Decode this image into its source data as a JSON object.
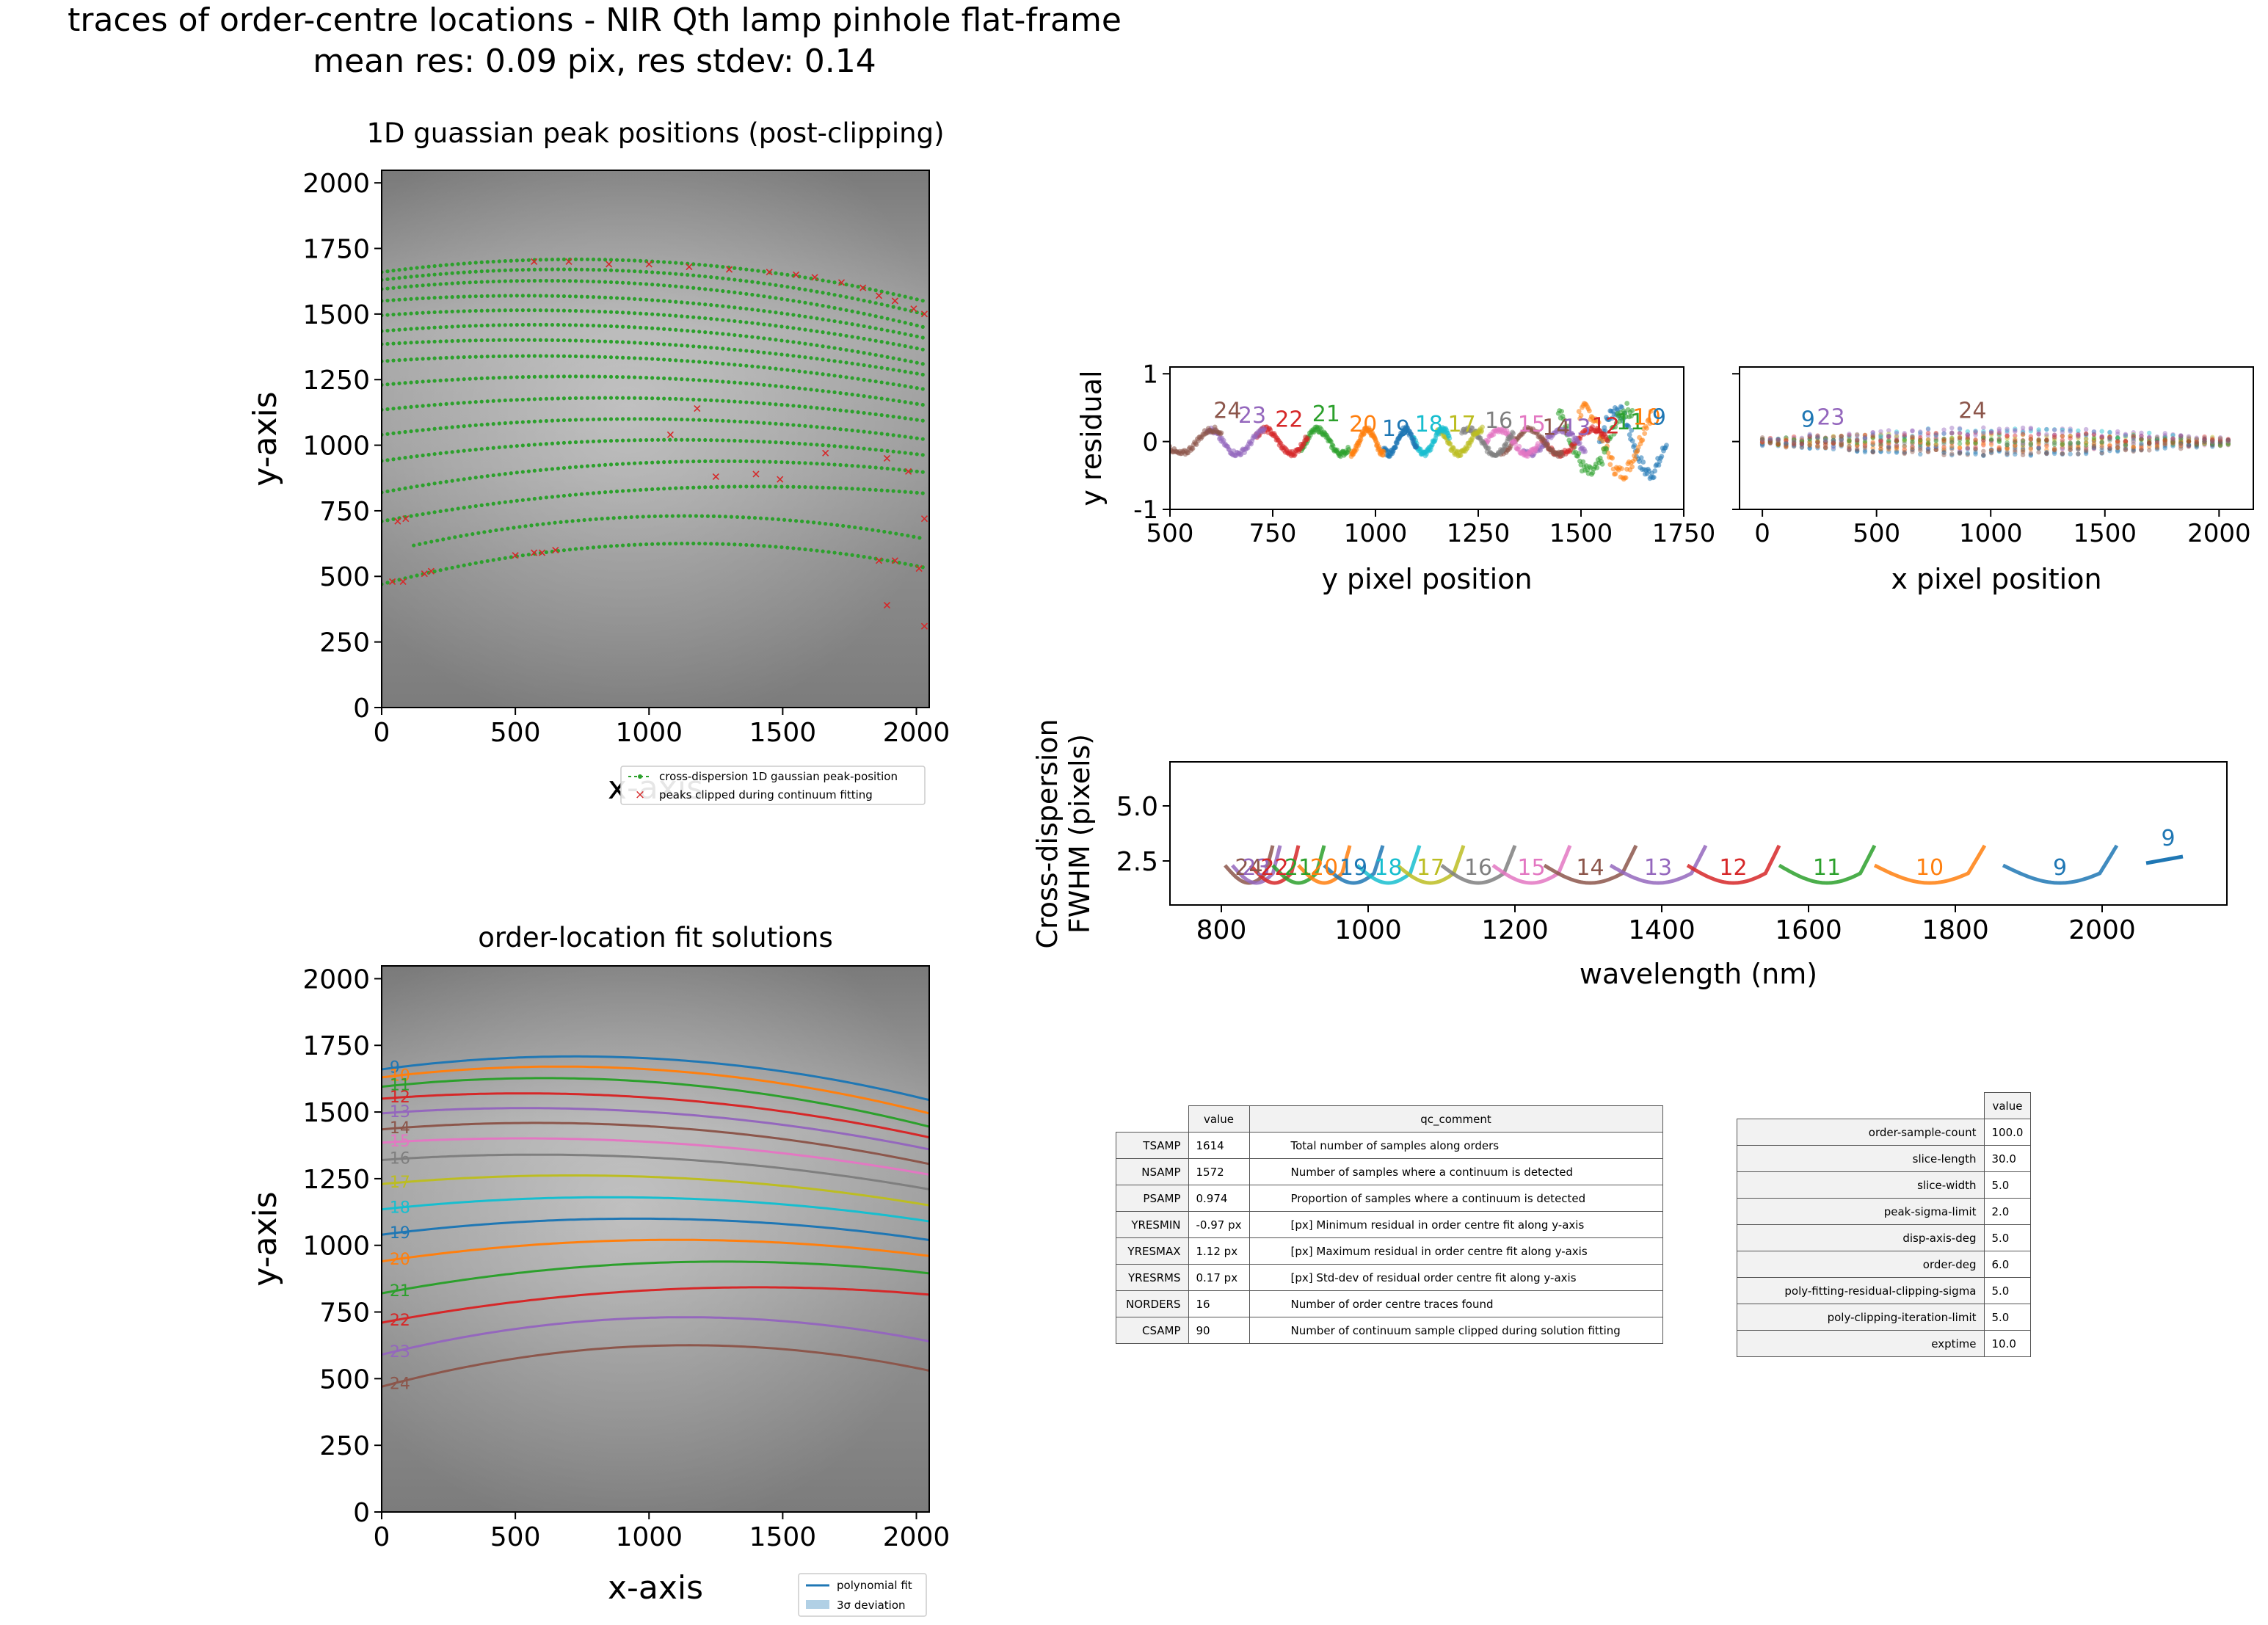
{
  "title": "traces of order-centre locations - NIR Qth lamp pinhole flat-frame",
  "subtitle": "mean res: 0.09 pix, res stdev: 0.14",
  "chart_data": [
    {
      "id": "peaks",
      "type": "scatter",
      "title": "1D guassian peak positions (post-clipping)",
      "xlabel": "x-axis",
      "ylabel": "y-axis",
      "xlim": [
        0,
        2048
      ],
      "ylim": [
        0,
        2048
      ],
      "xticks": [
        0,
        500,
        1000,
        1500,
        2000
      ],
      "yticks": [
        0,
        250,
        500,
        750,
        1000,
        1250,
        1500,
        1750,
        2000
      ],
      "background": "grayscale flat-frame image",
      "series": [
        {
          "name": "cross-dispersion 1D gaussian peak-position",
          "color": "#2ca02c",
          "marker": "dot"
        },
        {
          "name": "peaks clipped during continuum fitting",
          "color": "#d62728",
          "marker": "x",
          "points": [
            [
              40,
              480
            ],
            [
              80,
              480
            ],
            [
              160,
              510
            ],
            [
              185,
              520
            ],
            [
              500,
              580
            ],
            [
              570,
              590
            ],
            [
              600,
              590
            ],
            [
              650,
              600
            ],
            [
              60,
              710
            ],
            [
              90,
              720
            ],
            [
              1080,
              1040
            ],
            [
              1180,
              1140
            ],
            [
              1250,
              880
            ],
            [
              1400,
              890
            ],
            [
              1490,
              870
            ],
            [
              1660,
              970
            ],
            [
              1890,
              950
            ],
            [
              1970,
              900
            ],
            [
              2030,
              720
            ],
            [
              1860,
              560
            ],
            [
              1920,
              560
            ],
            [
              2010,
              530
            ],
            [
              1890,
              390
            ],
            [
              2030,
              310
            ],
            [
              570,
              1700
            ],
            [
              700,
              1700
            ],
            [
              850,
              1690
            ],
            [
              1000,
              1690
            ],
            [
              1150,
              1680
            ],
            [
              1300,
              1670
            ],
            [
              1450,
              1660
            ],
            [
              1550,
              1650
            ],
            [
              1620,
              1640
            ],
            [
              1720,
              1620
            ],
            [
              1800,
              1600
            ],
            [
              1860,
              1570
            ],
            [
              1920,
              1550
            ],
            [
              1990,
              1520
            ],
            [
              2030,
              1500
            ]
          ]
        }
      ],
      "orders": [
        {
          "order": 9,
          "ends": [
            1660,
            1545
          ],
          "peak": 1708,
          "peak_x": 650,
          "x_start": 0
        },
        {
          "order": 10,
          "ends": [
            1630,
            1495
          ],
          "peak": 1670,
          "peak_x": 730,
          "x_start": 0
        },
        {
          "order": 11,
          "ends": [
            1595,
            1445
          ],
          "peak": 1625,
          "peak_x": 760,
          "x_start": 0
        },
        {
          "order": 12,
          "ends": [
            1550,
            1405
          ],
          "peak": 1565,
          "peak_x": 790,
          "x_start": 0
        },
        {
          "order": 13,
          "ends": [
            1495,
            1360
          ],
          "peak": 1510,
          "peak_x": 800,
          "x_start": 0
        },
        {
          "order": 14,
          "ends": [
            1435,
            1305
          ],
          "peak": 1455,
          "peak_x": 820,
          "x_start": 0
        },
        {
          "order": 15,
          "ends": [
            1385,
            1265
          ],
          "peak": 1395,
          "peak_x": 850,
          "x_start": 0
        },
        {
          "order": 16,
          "ends": [
            1320,
            1210
          ],
          "peak": 1335,
          "peak_x": 870,
          "x_start": 0
        },
        {
          "order": 17,
          "ends": [
            1230,
            1150
          ],
          "peak": 1260,
          "peak_x": 900,
          "x_start": 0
        },
        {
          "order": 18,
          "ends": [
            1135,
            1090
          ],
          "peak": 1180,
          "peak_x": 930,
          "x_start": 0
        },
        {
          "order": 19,
          "ends": [
            1040,
            1020
          ],
          "peak": 1100,
          "peak_x": 980,
          "x_start": 0
        },
        {
          "order": 20,
          "ends": [
            940,
            960
          ],
          "peak": 1020,
          "peak_x": 1000,
          "x_start": 0
        },
        {
          "order": 21,
          "ends": [
            820,
            895
          ],
          "peak": 935,
          "peak_x": 1040,
          "x_start": 0
        },
        {
          "order": 22,
          "ends": [
            710,
            815
          ],
          "peak": 835,
          "peak_x": 1070,
          "x_start": 0
        },
        {
          "order": 23,
          "ends": [
            590,
            640
          ],
          "peak": 730,
          "peak_x": 1080,
          "x_start": 0
        },
        {
          "order": 24,
          "ends": [
            470,
            530
          ],
          "peak": 625,
          "peak_x": 1100,
          "x_start": 0
        }
      ],
      "legend": "below-right"
    },
    {
      "id": "fits",
      "type": "line",
      "title": "order-location fit solutions",
      "xlabel": "x-axis",
      "ylabel": "y-axis",
      "xlim": [
        0,
        2048
      ],
      "ylim": [
        0,
        2048
      ],
      "xticks": [
        0,
        500,
        1000,
        1500,
        2000
      ],
      "yticks": [
        0,
        250,
        500,
        750,
        1000,
        1250,
        1500,
        1750,
        2000
      ],
      "order_labels": [
        "9",
        "10",
        "11",
        "12",
        "13",
        "14",
        "15",
        "16",
        "17",
        "18",
        "19",
        "20",
        "21",
        "22",
        "23",
        "24"
      ],
      "legend": [
        "polynomial fit",
        "3σ deviation"
      ],
      "legend_position": "below-right"
    },
    {
      "id": "yres",
      "type": "scatter",
      "xlabel": "y pixel position",
      "ylabel": "y residual",
      "xlim": [
        500,
        1750
      ],
      "ylim": [
        -1,
        1.1
      ],
      "xticks": [
        500,
        750,
        1000,
        1250,
        1500,
        1750
      ],
      "yticks": [
        -1,
        0,
        1
      ],
      "order_labels": [
        {
          "label": "24",
          "x": 640,
          "y": 0.35
        },
        {
          "label": "23",
          "x": 700,
          "y": 0.28
        },
        {
          "label": "22",
          "x": 790,
          "y": 0.22
        },
        {
          "label": "21",
          "x": 880,
          "y": 0.3
        },
        {
          "label": "20",
          "x": 970,
          "y": 0.15
        },
        {
          "label": "19",
          "x": 1050,
          "y": 0.08
        },
        {
          "label": "18",
          "x": 1130,
          "y": 0.15
        },
        {
          "label": "17",
          "x": 1210,
          "y": 0.15
        },
        {
          "label": "16",
          "x": 1300,
          "y": 0.2
        },
        {
          "label": "15",
          "x": 1380,
          "y": 0.15
        },
        {
          "label": "14",
          "x": 1440,
          "y": 0.1
        },
        {
          "label": "13",
          "x": 1490,
          "y": 0.1
        },
        {
          "label": "12",
          "x": 1560,
          "y": 0.12
        },
        {
          "label": "11",
          "x": 1620,
          "y": 0.18
        },
        {
          "label": "10",
          "x": 1660,
          "y": 0.25
        },
        {
          "label": "9",
          "x": 1690,
          "y": 0.25
        }
      ]
    },
    {
      "id": "xres",
      "type": "scatter",
      "xlabel": "x pixel position",
      "ylabel": "",
      "xlim": [
        -100,
        2150
      ],
      "ylim": [
        -1,
        1.1
      ],
      "xticks": [
        0,
        500,
        1000,
        1500,
        2000
      ],
      "order_labels": [
        {
          "label": "9",
          "x": 200,
          "y": 0.22
        },
        {
          "label": "23",
          "x": 300,
          "y": 0.25
        },
        {
          "label": "24",
          "x": 920,
          "y": 0.35
        }
      ]
    },
    {
      "id": "fwhm",
      "type": "line",
      "xlabel": "wavelength (nm)",
      "ylabel": "Cross-dispersion FWHM (pixels)",
      "ylabel_lines": [
        "Cross-dispersion",
        "FWHM (pixels)"
      ],
      "xlim": [
        730,
        2170
      ],
      "ylim": [
        0.5,
        7.0
      ],
      "xticks": [
        800,
        1000,
        1200,
        1400,
        1600,
        1800,
        2000
      ],
      "ytick_labels": [
        "2.5",
        "5.0"
      ],
      "yticks": [
        2.5,
        5.0
      ],
      "orders": [
        {
          "order": 24,
          "range": [
            805,
            870
          ]
        },
        {
          "order": 23,
          "range": [
            815,
            880
          ]
        },
        {
          "order": 22,
          "range": [
            840,
            905
          ]
        },
        {
          "order": 21,
          "range": [
            870,
            940
          ]
        },
        {
          "order": 20,
          "range": [
            905,
            975
          ]
        },
        {
          "order": 19,
          "range": [
            940,
            1020
          ]
        },
        {
          "order": 18,
          "range": [
            985,
            1070
          ]
        },
        {
          "order": 17,
          "range": [
            1040,
            1130
          ]
        },
        {
          "order": 16,
          "range": [
            1100,
            1200
          ]
        },
        {
          "order": 15,
          "range": [
            1170,
            1275
          ]
        },
        {
          "order": 14,
          "range": [
            1240,
            1365
          ]
        },
        {
          "order": 13,
          "range": [
            1330,
            1460
          ]
        },
        {
          "order": 12,
          "range": [
            1435,
            1560
          ]
        },
        {
          "order": 11,
          "range": [
            1560,
            1690
          ]
        },
        {
          "order": 10,
          "range": [
            1690,
            1840
          ]
        },
        {
          "order": 9,
          "range": [
            1865,
            2020
          ]
        }
      ],
      "order_9_tail": [
        2060,
        2110
      ]
    }
  ],
  "qc_table": {
    "headers": [
      "value",
      "qc_comment"
    ],
    "rows": [
      {
        "name": "TSAMP",
        "value": "1614",
        "comment": "Total number of samples along orders"
      },
      {
        "name": "NSAMP",
        "value": "1572",
        "comment": "Number of samples where a continuum is detected"
      },
      {
        "name": "PSAMP",
        "value": "0.974",
        "comment": "Proportion of samples where a continuum is detected"
      },
      {
        "name": "YRESMIN",
        "value": "-0.97 px",
        "comment": "[px] Minimum residual in order centre fit along y-axis"
      },
      {
        "name": "YRESMAX",
        "value": "1.12 px",
        "comment": "[px] Maximum residual in order centre fit along y-axis"
      },
      {
        "name": "YRESRMS",
        "value": "0.17 px",
        "comment": "[px] Std-dev of residual order centre fit along y-axis"
      },
      {
        "name": "NORDERS",
        "value": "16",
        "comment": "Number of order centre traces found"
      },
      {
        "name": "CSAMP",
        "value": "90",
        "comment": "Number of continuum sample clipped during solution fitting"
      }
    ]
  },
  "settings_table": {
    "header": "value",
    "rows": [
      {
        "name": "order-sample-count",
        "value": "100.0"
      },
      {
        "name": "slice-length",
        "value": "30.0"
      },
      {
        "name": "slice-width",
        "value": "5.0"
      },
      {
        "name": "peak-sigma-limit",
        "value": "2.0"
      },
      {
        "name": "disp-axis-deg",
        "value": "5.0"
      },
      {
        "name": "order-deg",
        "value": "6.0"
      },
      {
        "name": "poly-fitting-residual-clipping-sigma",
        "value": "5.0"
      },
      {
        "name": "poly-clipping-iteration-limit",
        "value": "5.0"
      },
      {
        "name": "exptime",
        "value": "10.0"
      }
    ]
  },
  "colors": [
    "#1f77b4",
    "#ff7f0e",
    "#2ca02c",
    "#d62728",
    "#9467bd",
    "#8c564b",
    "#e377c2",
    "#7f7f7f",
    "#bcbd22",
    "#17becf"
  ]
}
